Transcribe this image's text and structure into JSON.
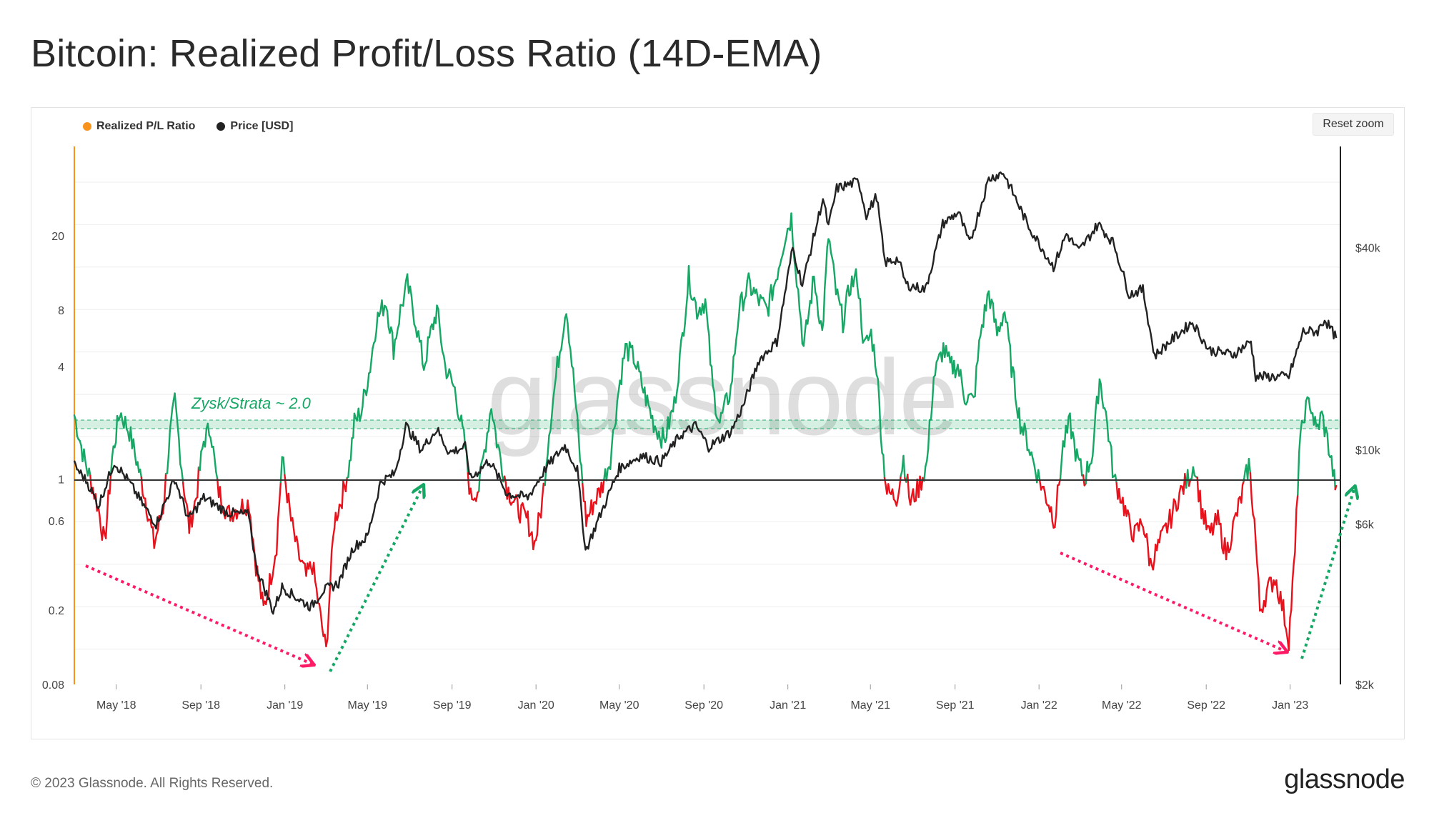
{
  "title": "Bitcoin: Realized Profit/Loss Ratio (14D-EMA)",
  "legend": [
    {
      "label": "Realized P/L Ratio",
      "color": "#f7931a"
    },
    {
      "label": "Price [USD]",
      "color": "#222222"
    }
  ],
  "reset_zoom_label": "Reset zoom",
  "annotation": "Zysk/Strata ~ 2.0",
  "watermark": "glassnode",
  "footer": {
    "copyright": "© 2023 Glassnode. All Rights Reserved.",
    "brand": "glassnode"
  },
  "colors": {
    "profit": "#16a765",
    "loss": "#e8121c",
    "price": "#222222",
    "axis_left": "#f7931a",
    "arrow_down": "#ff1a66",
    "arrow_up": "#16a765"
  },
  "chart_data": {
    "type": "line",
    "title": "Bitcoin: Realized Profit/Loss Ratio (14D-EMA)",
    "x_range": [
      "2018-03-01",
      "2023-03-15"
    ],
    "x_ticks": [
      {
        "label": "May '18",
        "date": "2018-05-01"
      },
      {
        "label": "Sep '18",
        "date": "2018-09-01"
      },
      {
        "label": "Jan '19",
        "date": "2019-01-01"
      },
      {
        "label": "May '19",
        "date": "2019-05-01"
      },
      {
        "label": "Sep '19",
        "date": "2019-09-01"
      },
      {
        "label": "Jan '20",
        "date": "2020-01-01"
      },
      {
        "label": "May '20",
        "date": "2020-05-01"
      },
      {
        "label": "Sep '20",
        "date": "2020-09-01"
      },
      {
        "label": "Jan '21",
        "date": "2021-01-01"
      },
      {
        "label": "May '21",
        "date": "2021-05-01"
      },
      {
        "label": "Sep '21",
        "date": "2021-09-01"
      },
      {
        "label": "Jan '22",
        "date": "2022-01-01"
      },
      {
        "label": "May '22",
        "date": "2022-05-01"
      },
      {
        "label": "Sep '22",
        "date": "2022-09-01"
      },
      {
        "label": "Jan '23",
        "date": "2023-01-01"
      }
    ],
    "y_left": {
      "scale": "log",
      "range": [
        0.08,
        60
      ],
      "ticks": [
        "20",
        "8",
        "4",
        "1",
        "0.6",
        "0.2",
        "0.08"
      ]
    },
    "y_right": {
      "scale": "log",
      "range": [
        2000,
        80000
      ],
      "ticks": [
        "$40k",
        "$10k",
        "$6k",
        "$2k"
      ]
    },
    "reference_lines": [
      {
        "value": 1,
        "label": ""
      },
      {
        "value": 2.0,
        "label": "Zysk/Strata ~ 2.0"
      }
    ],
    "series": [
      {
        "name": "Realized P/L Ratio",
        "axis": "left",
        "points": [
          [
            "2018-03-01",
            2.2
          ],
          [
            "2018-03-15",
            1.3
          ],
          [
            "2018-03-28",
            0.9
          ],
          [
            "2018-04-05",
            0.7
          ],
          [
            "2018-04-14",
            0.45
          ],
          [
            "2018-04-25",
            1.3
          ],
          [
            "2018-05-06",
            2.3
          ],
          [
            "2018-05-20",
            1.8
          ],
          [
            "2018-06-01",
            1.2
          ],
          [
            "2018-06-12",
            0.8
          ],
          [
            "2018-06-25",
            0.45
          ],
          [
            "2018-07-08",
            0.7
          ],
          [
            "2018-07-18",
            1.7
          ],
          [
            "2018-07-25",
            2.6
          ],
          [
            "2018-08-06",
            1.0
          ],
          [
            "2018-08-15",
            0.55
          ],
          [
            "2018-08-25",
            0.8
          ],
          [
            "2018-09-05",
            1.6
          ],
          [
            "2018-09-15",
            1.9
          ],
          [
            "2018-09-25",
            0.9
          ],
          [
            "2018-10-10",
            0.65
          ],
          [
            "2018-10-25",
            0.7
          ],
          [
            "2018-11-10",
            0.75
          ],
          [
            "2018-11-20",
            0.35
          ],
          [
            "2018-12-01",
            0.2
          ],
          [
            "2018-12-10",
            0.28
          ],
          [
            "2018-12-20",
            0.45
          ],
          [
            "2018-12-28",
            1.3
          ],
          [
            "2019-01-10",
            0.6
          ],
          [
            "2019-01-20",
            0.4
          ],
          [
            "2019-02-01",
            0.3
          ],
          [
            "2019-02-10",
            0.35
          ],
          [
            "2019-02-22",
            0.18
          ],
          [
            "2019-03-02",
            0.12
          ],
          [
            "2019-03-08",
            0.28
          ],
          [
            "2019-03-14",
            0.6
          ],
          [
            "2019-03-25",
            0.8
          ],
          [
            "2019-04-05",
            1.2
          ],
          [
            "2019-04-12",
            2.0
          ],
          [
            "2019-04-22",
            2.3
          ],
          [
            "2019-05-05",
            4.0
          ],
          [
            "2019-05-14",
            7.0
          ],
          [
            "2019-05-28",
            9.0
          ],
          [
            "2019-06-08",
            5.0
          ],
          [
            "2019-06-18",
            8.0
          ],
          [
            "2019-06-28",
            11.0
          ],
          [
            "2019-07-10",
            7.0
          ],
          [
            "2019-07-22",
            4.0
          ],
          [
            "2019-08-01",
            6.0
          ],
          [
            "2019-08-10",
            8.0
          ],
          [
            "2019-08-22",
            4.0
          ],
          [
            "2019-09-05",
            3.0
          ],
          [
            "2019-09-20",
            1.5
          ],
          [
            "2019-09-28",
            0.8
          ],
          [
            "2019-10-10",
            0.9
          ],
          [
            "2019-10-28",
            2.5
          ],
          [
            "2019-11-05",
            1.6
          ],
          [
            "2019-11-20",
            0.9
          ],
          [
            "2019-12-05",
            0.7
          ],
          [
            "2019-12-20",
            0.6
          ],
          [
            "2019-12-30",
            0.45
          ],
          [
            "2020-01-10",
            0.75
          ],
          [
            "2020-01-20",
            1.8
          ],
          [
            "2020-02-01",
            4.0
          ],
          [
            "2020-02-14",
            8.5
          ],
          [
            "2020-02-26",
            3.0
          ],
          [
            "2020-03-05",
            1.3
          ],
          [
            "2020-03-14",
            0.6
          ],
          [
            "2020-03-25",
            0.75
          ],
          [
            "2020-04-05",
            0.9
          ],
          [
            "2020-04-18",
            1.3
          ],
          [
            "2020-04-30",
            3.0
          ],
          [
            "2020-05-10",
            5.0
          ],
          [
            "2020-05-22",
            4.5
          ],
          [
            "2020-06-05",
            3.0
          ],
          [
            "2020-06-20",
            2.0
          ],
          [
            "2020-07-05",
            1.6
          ],
          [
            "2020-07-20",
            2.5
          ],
          [
            "2020-07-30",
            5.0
          ],
          [
            "2020-08-10",
            12.0
          ],
          [
            "2020-08-22",
            8.0
          ],
          [
            "2020-09-03",
            9.0
          ],
          [
            "2020-09-14",
            3.0
          ],
          [
            "2020-09-24",
            2.0
          ],
          [
            "2020-10-10",
            3.0
          ],
          [
            "2020-10-22",
            8.0
          ],
          [
            "2020-11-05",
            11.0
          ],
          [
            "2020-11-20",
            9.0
          ],
          [
            "2020-12-02",
            8.0
          ],
          [
            "2020-12-15",
            12.0
          ],
          [
            "2020-12-28",
            20.0
          ],
          [
            "2021-01-06",
            25.0
          ],
          [
            "2021-01-14",
            12.0
          ],
          [
            "2021-01-24",
            5.0
          ],
          [
            "2021-02-08",
            12.0
          ],
          [
            "2021-02-20",
            6.0
          ],
          [
            "2021-03-01",
            20.0
          ],
          [
            "2021-03-12",
            10.0
          ],
          [
            "2021-03-22",
            7.0
          ],
          [
            "2021-04-02",
            11.0
          ],
          [
            "2021-04-12",
            12.0
          ],
          [
            "2021-04-22",
            5.0
          ],
          [
            "2021-05-02",
            6.0
          ],
          [
            "2021-05-10",
            4.0
          ],
          [
            "2021-05-18",
            1.5
          ],
          [
            "2021-05-25",
            0.85
          ],
          [
            "2021-06-08",
            0.8
          ],
          [
            "2021-06-18",
            1.3
          ],
          [
            "2021-06-28",
            0.75
          ],
          [
            "2021-07-10",
            0.9
          ],
          [
            "2021-07-22",
            1.2
          ],
          [
            "2021-08-01",
            3.5
          ],
          [
            "2021-08-15",
            5.0
          ],
          [
            "2021-08-25",
            4.0
          ],
          [
            "2021-09-05",
            4.0
          ],
          [
            "2021-09-15",
            2.8
          ],
          [
            "2021-09-28",
            2.6
          ],
          [
            "2021-10-08",
            6.0
          ],
          [
            "2021-10-20",
            10.0
          ],
          [
            "2021-11-01",
            6.0
          ],
          [
            "2021-11-12",
            8.0
          ],
          [
            "2021-11-22",
            4.0
          ],
          [
            "2021-12-05",
            2.0
          ],
          [
            "2021-12-15",
            1.6
          ],
          [
            "2021-12-25",
            1.2
          ],
          [
            "2022-01-06",
            0.9
          ],
          [
            "2022-01-15",
            0.75
          ],
          [
            "2022-01-24",
            0.6
          ],
          [
            "2022-02-05",
            1.5
          ],
          [
            "2022-02-15",
            2.0
          ],
          [
            "2022-02-25",
            1.3
          ],
          [
            "2022-03-08",
            1.0
          ],
          [
            "2022-03-20",
            1.4
          ],
          [
            "2022-03-30",
            3.5
          ],
          [
            "2022-04-10",
            2.0
          ],
          [
            "2022-04-20",
            1.0
          ],
          [
            "2022-05-01",
            0.8
          ],
          [
            "2022-05-10",
            0.6
          ],
          [
            "2022-05-20",
            0.5
          ],
          [
            "2022-06-01",
            0.6
          ],
          [
            "2022-06-12",
            0.35
          ],
          [
            "2022-06-25",
            0.45
          ],
          [
            "2022-07-10",
            0.6
          ],
          [
            "2022-07-22",
            0.8
          ],
          [
            "2022-08-05",
            1.0
          ],
          [
            "2022-08-15",
            1.2
          ],
          [
            "2022-08-25",
            0.7
          ],
          [
            "2022-09-05",
            0.5
          ],
          [
            "2022-09-18",
            0.6
          ],
          [
            "2022-09-30",
            0.4
          ],
          [
            "2022-10-10",
            0.55
          ],
          [
            "2022-10-22",
            0.8
          ],
          [
            "2022-11-02",
            1.2
          ],
          [
            "2022-11-10",
            0.6
          ],
          [
            "2022-11-18",
            0.2
          ],
          [
            "2022-11-28",
            0.25
          ],
          [
            "2022-12-10",
            0.3
          ],
          [
            "2022-12-22",
            0.2
          ],
          [
            "2022-12-30",
            0.14
          ],
          [
            "2023-01-08",
            0.4
          ],
          [
            "2023-01-14",
            1.4
          ],
          [
            "2023-01-22",
            2.3
          ],
          [
            "2023-01-30",
            2.6
          ],
          [
            "2023-02-08",
            1.8
          ],
          [
            "2023-02-16",
            2.2
          ],
          [
            "2023-02-26",
            1.5
          ],
          [
            "2023-03-06",
            1.0
          ],
          [
            "2023-03-09",
            0.92
          ]
        ]
      },
      {
        "name": "Price [USD]",
        "axis": "right",
        "points": [
          [
            "2018-03-01",
            9000
          ],
          [
            "2018-03-20",
            8000
          ],
          [
            "2018-04-05",
            6800
          ],
          [
            "2018-04-28",
            9200
          ],
          [
            "2018-05-20",
            8000
          ],
          [
            "2018-06-10",
            6800
          ],
          [
            "2018-06-28",
            6000
          ],
          [
            "2018-07-25",
            8200
          ],
          [
            "2018-08-14",
            6200
          ],
          [
            "2018-09-05",
            7200
          ],
          [
            "2018-10-10",
            6500
          ],
          [
            "2018-11-10",
            6400
          ],
          [
            "2018-11-20",
            4500
          ],
          [
            "2018-12-15",
            3300
          ],
          [
            "2018-12-28",
            3900
          ],
          [
            "2019-01-20",
            3600
          ],
          [
            "2019-02-08",
            3400
          ],
          [
            "2019-02-25",
            3800
          ],
          [
            "2019-03-20",
            4000
          ],
          [
            "2019-04-10",
            5100
          ],
          [
            "2019-05-01",
            5500
          ],
          [
            "2019-05-20",
            8000
          ],
          [
            "2019-06-10",
            8500
          ],
          [
            "2019-06-26",
            11800
          ],
          [
            "2019-07-18",
            10000
          ],
          [
            "2019-08-10",
            11500
          ],
          [
            "2019-08-28",
            9800
          ],
          [
            "2019-09-20",
            10200
          ],
          [
            "2019-09-28",
            8200
          ],
          [
            "2019-10-25",
            9300
          ],
          [
            "2019-11-20",
            7400
          ],
          [
            "2019-12-20",
            7200
          ],
          [
            "2020-01-15",
            8800
          ],
          [
            "2020-02-12",
            10300
          ],
          [
            "2020-03-01",
            8700
          ],
          [
            "2020-03-13",
            5000
          ],
          [
            "2020-04-10",
            6900
          ],
          [
            "2020-05-01",
            8800
          ],
          [
            "2020-06-01",
            9600
          ],
          [
            "2020-07-01",
            9200
          ],
          [
            "2020-07-28",
            11000
          ],
          [
            "2020-08-20",
            11800
          ],
          [
            "2020-09-08",
            10200
          ],
          [
            "2020-10-10",
            11300
          ],
          [
            "2020-10-28",
            13500
          ],
          [
            "2020-11-20",
            18500
          ],
          [
            "2020-12-16",
            21000
          ],
          [
            "2021-01-08",
            40000
          ],
          [
            "2021-01-22",
            31000
          ],
          [
            "2021-02-21",
            56000
          ],
          [
            "2021-03-01",
            46000
          ],
          [
            "2021-03-13",
            60000
          ],
          [
            "2021-04-14",
            63000
          ],
          [
            "2021-04-25",
            50000
          ],
          [
            "2021-05-10",
            57000
          ],
          [
            "2021-05-22",
            36000
          ],
          [
            "2021-06-10",
            37000
          ],
          [
            "2021-06-22",
            31000
          ],
          [
            "2021-07-20",
            30000
          ],
          [
            "2021-08-14",
            47000
          ],
          [
            "2021-09-06",
            51000
          ],
          [
            "2021-09-22",
            41000
          ],
          [
            "2021-10-20",
            64000
          ],
          [
            "2021-11-10",
            67000
          ],
          [
            "2021-11-28",
            56000
          ],
          [
            "2021-12-15",
            47000
          ],
          [
            "2022-01-22",
            35000
          ],
          [
            "2022-02-10",
            44000
          ],
          [
            "2022-02-28",
            39000
          ],
          [
            "2022-03-28",
            47000
          ],
          [
            "2022-04-20",
            41000
          ],
          [
            "2022-05-12",
            29000
          ],
          [
            "2022-06-01",
            30000
          ],
          [
            "2022-06-18",
            19000
          ],
          [
            "2022-07-10",
            21000
          ],
          [
            "2022-08-12",
            24000
          ],
          [
            "2022-09-05",
            19800
          ],
          [
            "2022-10-10",
            19200
          ],
          [
            "2022-11-05",
            21000
          ],
          [
            "2022-11-12",
            16500
          ],
          [
            "2022-12-30",
            16500
          ],
          [
            "2023-01-20",
            22500
          ],
          [
            "2023-02-10",
            22500
          ],
          [
            "2023-02-20",
            24500
          ],
          [
            "2023-03-09",
            21500
          ]
        ]
      }
    ]
  }
}
